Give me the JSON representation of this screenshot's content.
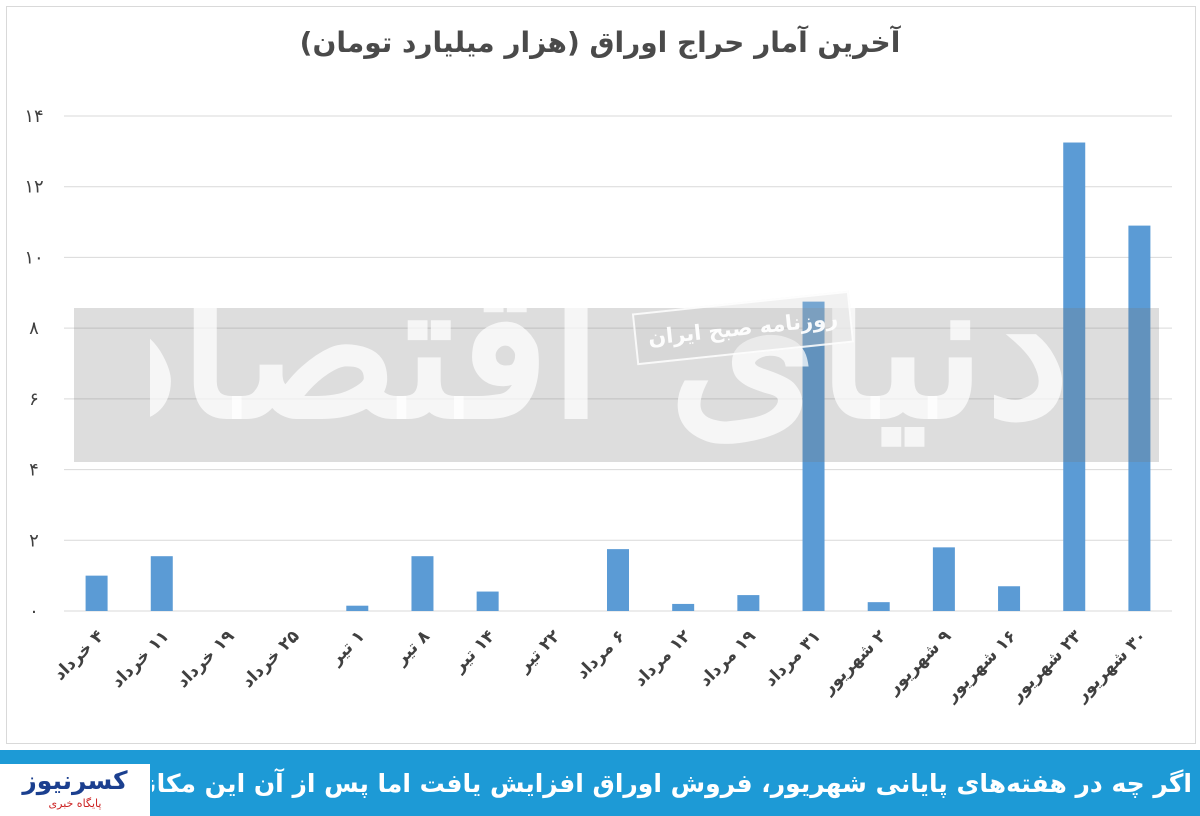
{
  "chart_data": {
    "type": "bar",
    "title": "آخرین آمار حراج اوراق (هزار میلیارد تومان)",
    "xlabel": "",
    "ylabel": "",
    "ylim": [
      0,
      14
    ],
    "yticks": [
      0,
      2,
      4,
      6,
      8,
      10,
      12,
      14
    ],
    "ytick_labels": [
      "۰",
      "۲",
      "۴",
      "۶",
      "۸",
      "۱۰",
      "۱۲",
      "۱۴"
    ],
    "grid": true,
    "bar_color": "#5b9bd5",
    "categories": [
      "۴ خرداد",
      "۱۱ خرداد",
      "۱۹ خرداد",
      "۲۵ خرداد",
      "۱ تیر",
      "۸ تیر",
      "۱۴ تیر",
      "۲۲ تیر",
      "۶ مرداد",
      "۱۲ مرداد",
      "۱۹ مرداد",
      "۳۱ مرداد",
      "۲ شهریور",
      "۹ شهریور",
      "۱۶ شهریور",
      "۲۳ شهریور",
      "۳۰ شهریور"
    ],
    "values": [
      1.0,
      1.55,
      0,
      0,
      0.15,
      1.55,
      0.55,
      0,
      1.75,
      0.2,
      0.45,
      8.75,
      0.25,
      1.8,
      0.7,
      13.25,
      10.9
    ]
  },
  "watermark": {
    "main_text": "دنیای اقتصاد",
    "badge_text": "روزنامه صبح ایران"
  },
  "footer": {
    "caption": "اگر چه در هفته‌های پایانی شهریور، فروش اوراق افزایش یافت اما پس از آن این مکانیزم متوقف شد",
    "logo_main": "کسرنیوز",
    "logo_sub": "پایگاه خبری"
  }
}
